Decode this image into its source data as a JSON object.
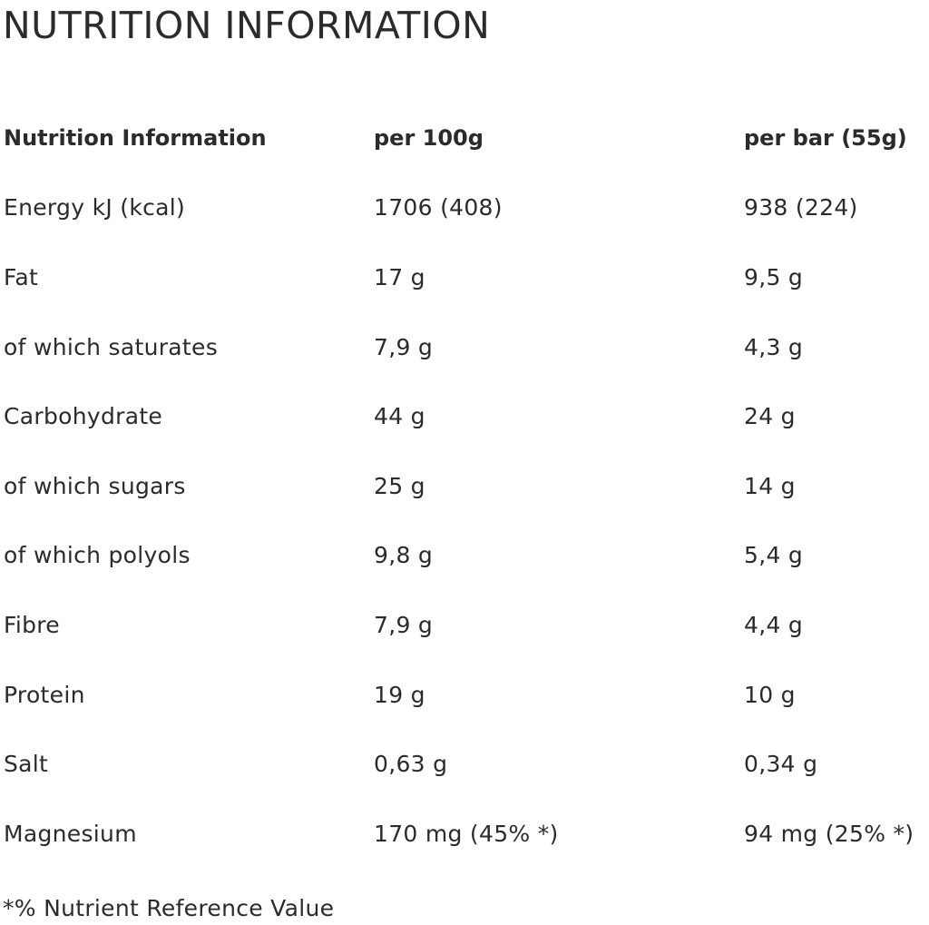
{
  "page_title": "NUTRITION INFORMATION",
  "table": {
    "headers": [
      "Nutrition Information",
      "per 100g",
      "per bar (55g)"
    ],
    "rows": [
      [
        "Energy kJ (kcal)",
        "1706 (408)",
        "938 (224)"
      ],
      [
        "Fat",
        "17 g",
        "9,5 g"
      ],
      [
        "of which saturates",
        "7,9 g",
        "4,3 g"
      ],
      [
        "Carbohydrate",
        "44 g",
        "24 g"
      ],
      [
        "of which sugars",
        "25 g",
        "14 g"
      ],
      [
        "of which polyols",
        "9,8 g",
        "5,4 g"
      ],
      [
        "Fibre",
        "7,9 g",
        "4,4 g"
      ],
      [
        "Protein",
        "19 g",
        "10 g"
      ],
      [
        "Salt",
        "0,63 g",
        "0,34 g"
      ],
      [
        "Magnesium",
        "170 mg (45% *)",
        "94 mg (25% *)"
      ]
    ]
  },
  "footnote": "*% Nutrient Reference Value"
}
